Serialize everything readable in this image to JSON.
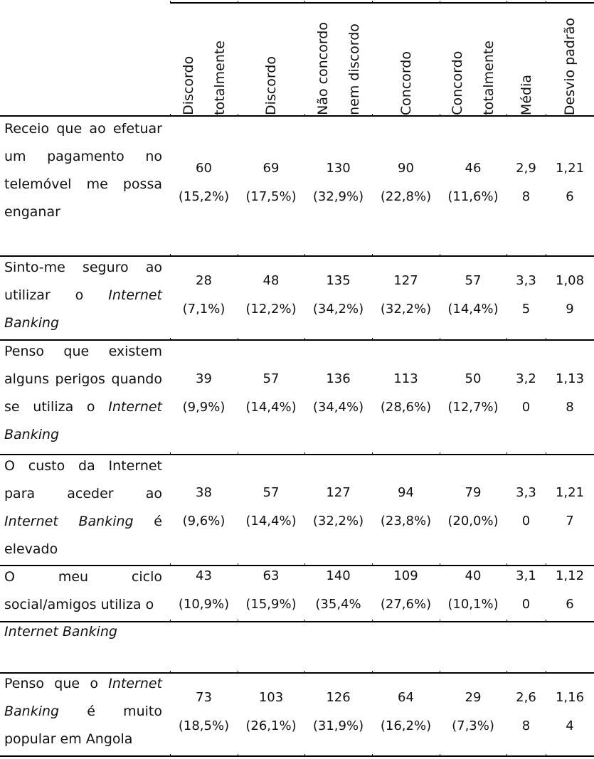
{
  "table": {
    "columns": [
      "Discordo\ntotalmente",
      "Discordo",
      "Não concordo\nnem discordo",
      "Concordo",
      "Concordo\ntotalmente",
      "Média",
      "Desvio padrão"
    ],
    "rows": [
      {
        "label": "Receio que ao efetuar um pagamento no telemóvel me possa enganar",
        "cells": [
          "60\n(15,2%)",
          "69\n(17,5%)",
          "130\n(32,9%)",
          "90\n(22,8%)",
          "46\n(11,6%)",
          "2,9\n8",
          "1,21\n6"
        ]
      },
      {
        "label": "Sinto-me seguro ao utilizar o Internet Banking",
        "cells": [
          "28\n(7,1%)",
          "48\n(12,2%)",
          "135\n(34,2%)",
          "127\n(32,2%)",
          "57\n(14,4%)",
          "3,3\n5",
          "1,08\n9"
        ]
      },
      {
        "label": "Penso que existem alguns perigos quando se utiliza o Internet Banking",
        "cells": [
          "39\n(9,9%)",
          "57\n(14,4%)",
          "136\n(34,4%)",
          "113\n(28,6%)",
          "50\n(12,7%)",
          "3,2\n0",
          "1,13\n8"
        ]
      },
      {
        "label": "O custo da Internet para aceder ao Internet Banking é elevado",
        "cells": [
          "38\n(9,6%)",
          "57\n(14,4%)",
          "127\n(32,2%)",
          "94\n(23,8%)",
          "79\n(20,0%)",
          "3,3\n0",
          "1,21\n7"
        ]
      },
      {
        "label": "O meu ciclo social/amigos utiliza o",
        "label_overflow": "Internet Banking",
        "cells": [
          "43\n(10,9%)",
          "63\n(15,9%)",
          "140\n(35,4%",
          "109\n(27,6%)",
          "40\n(10,1%)",
          "3,1\n0",
          "1,12\n6"
        ]
      },
      {
        "label": "Penso que o Internet Banking é muito popular em Angola",
        "cells": [
          "73\n(18,5%)",
          "103\n(26,1%)",
          "126\n(31,9%)",
          "64\n(16,2%)",
          "29\n(7,3%)",
          "2,6\n8",
          "1,16\n4"
        ]
      }
    ]
  }
}
